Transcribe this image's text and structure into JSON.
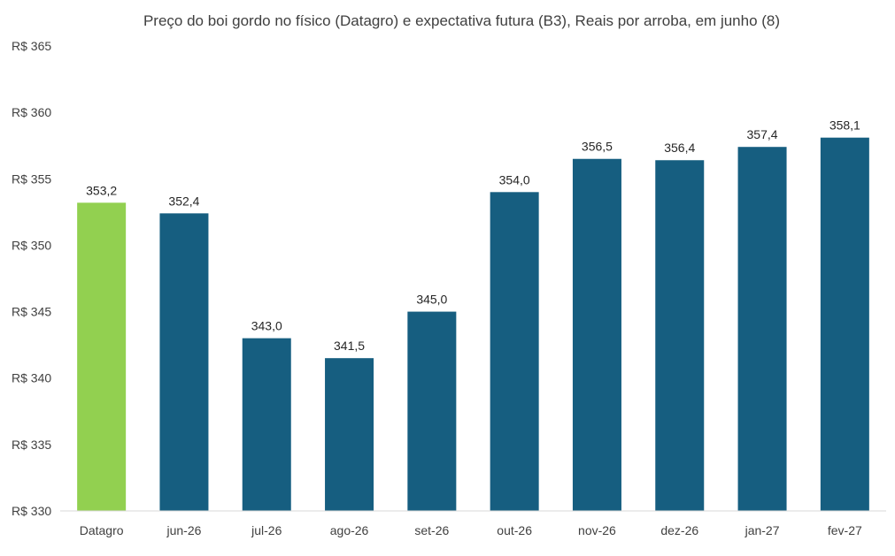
{
  "chart_data": {
    "type": "bar",
    "title": "Preço do boi gordo no físico (Datagro)  e expectativa futura (B3), Reais por arroba, em junho (8)",
    "xlabel": "",
    "ylabel": "",
    "categories": [
      "Datagro",
      "jun-26",
      "jul-26",
      "ago-26",
      "set-26",
      "out-26",
      "nov-26",
      "dez-26",
      "jan-27",
      "fev-27"
    ],
    "values": [
      353.2,
      352.4,
      343.0,
      341.5,
      345.0,
      354.0,
      356.5,
      356.4,
      357.4,
      358.1
    ],
    "data_labels": [
      "353,2",
      "352,4",
      "343,0",
      "341,5",
      "345,0",
      "354,0",
      "356,5",
      "356,4",
      "357,4",
      "358,1"
    ],
    "ylim": [
      330,
      365
    ],
    "yticks": [
      330,
      335,
      340,
      345,
      350,
      355,
      360,
      365
    ],
    "ytick_labels": [
      "R$ 330",
      "R$ 335",
      "R$ 340",
      "R$ 345",
      "R$ 350",
      "R$ 355",
      "R$ 360",
      "R$ 365"
    ],
    "grid": false,
    "colors": {
      "highlight": "#92d050",
      "bar": "#165e80",
      "axis": "#d9d9d9"
    }
  }
}
